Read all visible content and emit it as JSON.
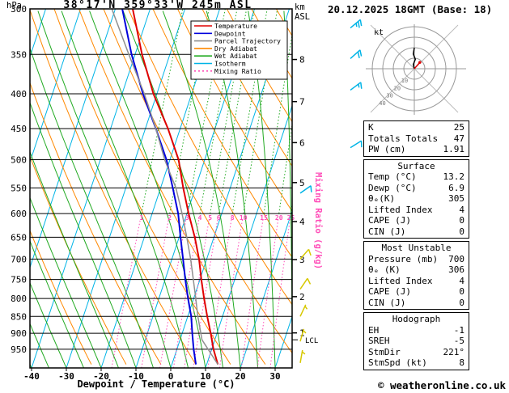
{
  "header": {
    "title": "38°17'N 359°33'W 245m ASL",
    "datetime": "20.12.2025 18GMT (Base: 18)",
    "left_unit": "hPa",
    "right_unit_line1": "km",
    "right_unit_line2": "ASL"
  },
  "legend": {
    "items": [
      {
        "label": "Temperature",
        "color": "#e00000",
        "dash": ""
      },
      {
        "label": "Dewpoint",
        "color": "#0000dd",
        "dash": ""
      },
      {
        "label": "Parcel Trajectory",
        "color": "#909090",
        "dash": ""
      },
      {
        "label": "Dry Adiabat",
        "color": "#ff8800",
        "dash": ""
      },
      {
        "label": "Wet Adiabat",
        "color": "#22aa22",
        "dash": ""
      },
      {
        "label": "Isotherm",
        "color": "#00b4e6",
        "dash": ""
      },
      {
        "label": "Mixing Ratio",
        "color": "#ff4db8",
        "dash": "2,3"
      }
    ]
  },
  "style": {
    "temperature": "#e00000",
    "dewpoint": "#0000dd",
    "parcel": "#909090",
    "dry_adiabat": "#ff8800",
    "wet_adiabat": "#22aa22",
    "isotherm": "#00b4e6",
    "mixing_ratio": "#ff4db8",
    "barb_upper": "#00b4e6",
    "barb_lower": "#d7c800"
  },
  "axes": {
    "pressure_ticks": [
      300,
      350,
      400,
      450,
      500,
      550,
      600,
      650,
      700,
      750,
      800,
      850,
      900,
      950
    ],
    "temp_ticks": [
      -40,
      -30,
      -20,
      -10,
      0,
      10,
      20,
      30
    ],
    "km_ticks": [
      1,
      2,
      3,
      4,
      5,
      6,
      7,
      8
    ],
    "xlabel": "Dewpoint / Temperature (°C)",
    "mixing_ratio_axis_label": "Mixing Ratio (g/kg)",
    "lcl_label": "LCL"
  },
  "chart_data": {
    "type": "line",
    "title": "Skew-T log-P sounding",
    "pressure_range_hpa": [
      300,
      1012
    ],
    "temp_axis_range_c": [
      -40,
      35
    ],
    "mixing_ratio_lines_gkg": [
      1,
      2,
      3,
      4,
      5,
      6,
      8,
      10,
      15,
      20,
      25
    ],
    "lcl_pressure_hpa": 920,
    "series": [
      {
        "name": "Temperature",
        "color": "#e00000",
        "width": 2,
        "points": [
          [
            1000,
            13.2
          ],
          [
            950,
            10.5
          ],
          [
            900,
            8.2
          ],
          [
            850,
            5.6
          ],
          [
            800,
            3.0
          ],
          [
            750,
            0.4
          ],
          [
            700,
            -2.2
          ],
          [
            650,
            -5.5
          ],
          [
            600,
            -9.5
          ],
          [
            550,
            -13.5
          ],
          [
            500,
            -17.5
          ],
          [
            450,
            -23.5
          ],
          [
            400,
            -31.0
          ],
          [
            350,
            -38.0
          ],
          [
            300,
            -45.0
          ]
        ]
      },
      {
        "name": "Dewpoint",
        "color": "#0000dd",
        "width": 2,
        "points": [
          [
            1000,
            6.9
          ],
          [
            950,
            4.8
          ],
          [
            900,
            2.9
          ],
          [
            850,
            1.0
          ],
          [
            800,
            -1.6
          ],
          [
            750,
            -4.2
          ],
          [
            700,
            -6.8
          ],
          [
            650,
            -9.6
          ],
          [
            600,
            -12.5
          ],
          [
            550,
            -16.5
          ],
          [
            500,
            -21.0
          ],
          [
            450,
            -27.0
          ],
          [
            400,
            -34.0
          ],
          [
            350,
            -41.0
          ],
          [
            300,
            -48.0
          ]
        ]
      },
      {
        "name": "Parcel Trajectory",
        "color": "#909090",
        "width": 1.5,
        "points": [
          [
            1000,
            13.2
          ],
          [
            920,
            6.3
          ],
          [
            850,
            2.9
          ],
          [
            800,
            0.6
          ],
          [
            750,
            -1.9
          ],
          [
            700,
            -4.6
          ],
          [
            650,
            -7.8
          ],
          [
            600,
            -11.4
          ],
          [
            550,
            -15.6
          ],
          [
            500,
            -21.5
          ],
          [
            450,
            -27.0
          ],
          [
            400,
            -33.6
          ],
          [
            350,
            -41.8
          ],
          [
            300,
            -51.0
          ]
        ]
      }
    ],
    "wind_barbs": [
      {
        "p": 320,
        "dir": 230,
        "kt": 27,
        "color": "#00b4e6",
        "col": "outer"
      },
      {
        "p": 355,
        "dir": 228,
        "kt": 22,
        "color": "#00b4e6",
        "col": "outer"
      },
      {
        "p": 395,
        "dir": 233,
        "kt": 15,
        "color": "#00b4e6",
        "col": "outer"
      },
      {
        "p": 480,
        "dir": 238,
        "kt": 10,
        "color": "#00b4e6",
        "col": "outer"
      },
      {
        "p": 560,
        "dir": 235,
        "kt": 8,
        "color": "#00b4e6",
        "col": "inner"
      },
      {
        "p": 700,
        "dir": 221,
        "kt": 10,
        "color": "#d7c800",
        "col": "inner"
      },
      {
        "p": 775,
        "dir": 214,
        "kt": 8,
        "color": "#d7c800",
        "col": "inner"
      },
      {
        "p": 850,
        "dir": 205,
        "kt": 6,
        "color": "#d7c800",
        "col": "inner"
      },
      {
        "p": 925,
        "dir": 196,
        "kt": 5,
        "color": "#d7c800",
        "col": "inner"
      },
      {
        "p": 995,
        "dir": 190,
        "kt": 4,
        "color": "#d7c800",
        "col": "inner"
      }
    ]
  },
  "hodograph": {
    "unit_label": "kt",
    "ring_labels": [
      10,
      20,
      30,
      40
    ],
    "trace": [
      [
        0,
        0
      ],
      [
        -1,
        4
      ],
      [
        1,
        9
      ],
      [
        -1,
        14
      ],
      [
        0,
        20
      ]
    ],
    "storm_dir_deg": 221,
    "storm_speed_kt": 8
  },
  "tables": [
    {
      "rows": [
        [
          "K",
          "25"
        ],
        [
          "Totals Totals",
          "47"
        ],
        [
          "PW (cm)",
          "1.91"
        ]
      ]
    },
    {
      "header": "Surface",
      "rows": [
        [
          "Temp (°C)",
          "13.2"
        ],
        [
          "Dewp (°C)",
          "6.9"
        ],
        [
          "θₑ(K)",
          "305"
        ],
        [
          "Lifted Index",
          "4"
        ],
        [
          "CAPE (J)",
          "0"
        ],
        [
          "CIN (J)",
          "0"
        ]
      ]
    },
    {
      "header": "Most Unstable",
      "rows": [
        [
          "Pressure (mb)",
          "700"
        ],
        [
          "θₑ (K)",
          "306"
        ],
        [
          "Lifted Index",
          "4"
        ],
        [
          "CAPE (J)",
          "0"
        ],
        [
          "CIN (J)",
          "0"
        ]
      ]
    },
    {
      "header": "Hodograph",
      "rows": [
        [
          "EH",
          "-1"
        ],
        [
          "SREH",
          "-5"
        ],
        [
          "StmDir",
          "221°"
        ],
        [
          "StmSpd (kt)",
          "8"
        ]
      ]
    }
  ],
  "footer": {
    "copyright": "© weatheronline.co.uk"
  }
}
